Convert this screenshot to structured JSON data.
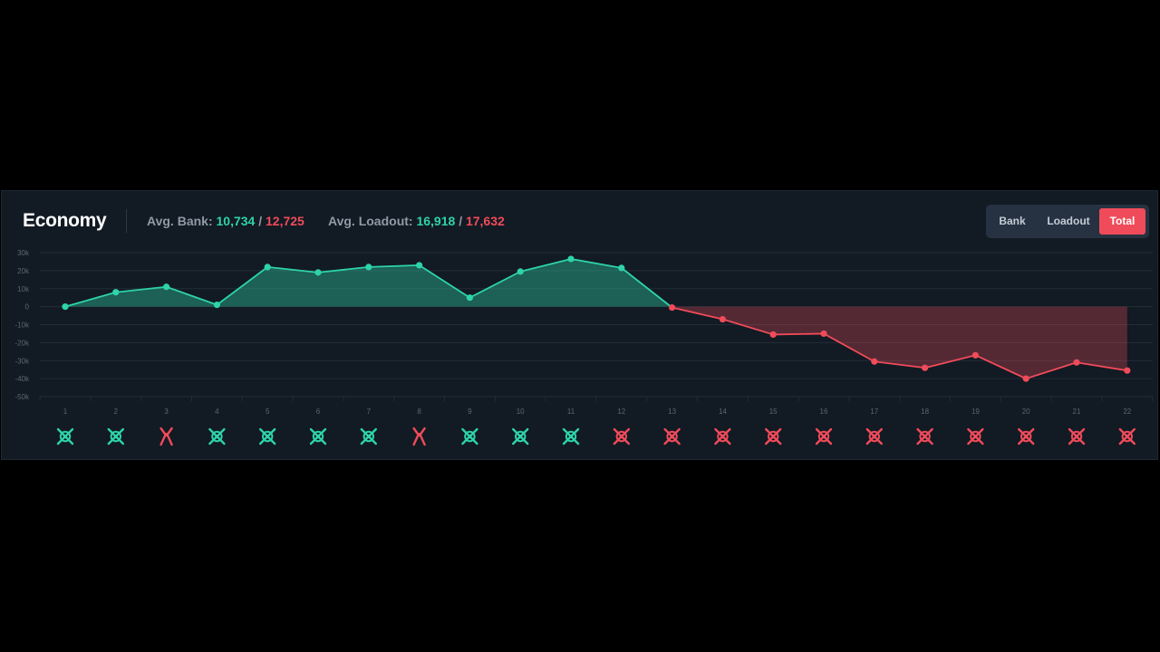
{
  "header": {
    "title": "Economy",
    "avg_bank_label": "Avg. Bank:",
    "avg_bank_team": "10,734",
    "avg_bank_enemy": "12,725",
    "avg_loadout_label": "Avg. Loadout:",
    "avg_loadout_team": "16,918",
    "avg_loadout_enemy": "17,632",
    "separator": "/"
  },
  "toggle": {
    "bank_label": "Bank",
    "loadout_label": "Loadout",
    "total_label": "Total",
    "active": "total"
  },
  "colors": {
    "team": "#2ed3aa",
    "enemy": "#f04b5a",
    "panel": "#121a23",
    "grid": "#222d38"
  },
  "chart_data": {
    "type": "area",
    "title": "",
    "xlabel": "",
    "ylabel": "",
    "ylim": [
      -50000,
      30000
    ],
    "yticks": [
      30000,
      20000,
      10000,
      0,
      -10000,
      -20000,
      -30000,
      -40000,
      -50000
    ],
    "ytick_labels": [
      "30k",
      "20k",
      "10k",
      "0",
      "-10k",
      "-20k",
      "-30k",
      "-40k",
      "-50k"
    ],
    "x": [
      1,
      2,
      3,
      4,
      5,
      6,
      7,
      8,
      9,
      10,
      11,
      12,
      13,
      14,
      15,
      16,
      17,
      18,
      19,
      20,
      21,
      22
    ],
    "xtick_labels": [
      "1",
      "2",
      "3",
      "4",
      "5",
      "6",
      "7",
      "8",
      "9",
      "10",
      "11",
      "12",
      "13",
      "14",
      "15",
      "16",
      "17",
      "18",
      "19",
      "20",
      "21",
      "22"
    ],
    "values": [
      0,
      8000,
      11000,
      1000,
      22000,
      19000,
      22000,
      23000,
      5000,
      19500,
      26500,
      21500,
      -500,
      -7000,
      -15500,
      -15000,
      -30500,
      -34000,
      -27000,
      -40000,
      -31000,
      -35500
    ],
    "grid": true,
    "legend": "none",
    "positive_color": "#2ed3aa",
    "negative_color": "#f04b5a"
  },
  "rounds": [
    {
      "round": 1,
      "icon": "defuse-icon",
      "winner": "team"
    },
    {
      "round": 2,
      "icon": "defuse-icon",
      "winner": "team"
    },
    {
      "round": 3,
      "icon": "defuser-tool-icon",
      "winner": "enemy"
    },
    {
      "round": 4,
      "icon": "defuse-icon",
      "winner": "team"
    },
    {
      "round": 5,
      "icon": "defuse-icon",
      "winner": "team"
    },
    {
      "round": 6,
      "icon": "defuse-icon",
      "winner": "team"
    },
    {
      "round": 7,
      "icon": "defuse-icon",
      "winner": "team"
    },
    {
      "round": 8,
      "icon": "defuser-tool-icon",
      "winner": "enemy"
    },
    {
      "round": 9,
      "icon": "defuse-icon",
      "winner": "team"
    },
    {
      "round": 10,
      "icon": "defuse-icon",
      "winner": "team"
    },
    {
      "round": 11,
      "icon": "defuse-icon",
      "winner": "team"
    },
    {
      "round": 12,
      "icon": "defuse-icon",
      "winner": "enemy"
    },
    {
      "round": 13,
      "icon": "defuse-icon",
      "winner": "enemy"
    },
    {
      "round": 14,
      "icon": "defuse-icon",
      "winner": "enemy"
    },
    {
      "round": 15,
      "icon": "defuse-icon",
      "winner": "enemy"
    },
    {
      "round": 16,
      "icon": "defuse-icon",
      "winner": "enemy"
    },
    {
      "round": 17,
      "icon": "defuse-icon",
      "winner": "enemy"
    },
    {
      "round": 18,
      "icon": "defuse-icon",
      "winner": "enemy"
    },
    {
      "round": 19,
      "icon": "defuse-icon",
      "winner": "enemy"
    },
    {
      "round": 20,
      "icon": "defuse-icon",
      "winner": "enemy"
    },
    {
      "round": 21,
      "icon": "defuse-icon",
      "winner": "enemy"
    },
    {
      "round": 22,
      "icon": "defuse-icon",
      "winner": "enemy"
    }
  ]
}
